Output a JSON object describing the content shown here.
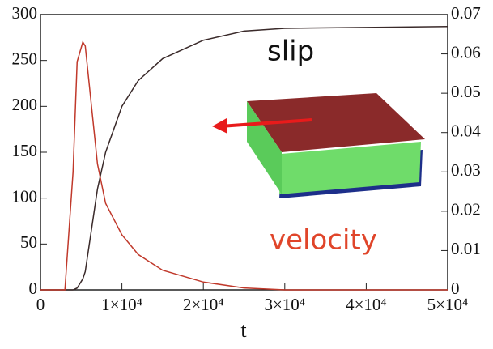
{
  "chart_data": {
    "type": "line",
    "x_label": "t",
    "annotations": [
      "slip",
      "velocity"
    ],
    "x": [
      0,
      3000,
      4000,
      4500,
      5200,
      5500,
      6000,
      6500,
      7000,
      8000,
      10000,
      12000,
      15000,
      20000,
      25000,
      30000,
      40000,
      50000
    ],
    "series": [
      {
        "name": "slip",
        "color": "#3a2a2a",
        "values": [
          0,
          0,
          0,
          2,
          12,
          20,
          50,
          80,
          110,
          150,
          200,
          228,
          252,
          272,
          282,
          285,
          286,
          287
        ]
      },
      {
        "name": "velocity",
        "color": "#c0392b",
        "axis": "y2",
        "values": [
          0,
          0,
          0.03,
          0.058,
          0.063,
          0.062,
          0.052,
          0.042,
          0.032,
          0.022,
          0.014,
          0.009,
          0.005,
          0.002,
          0.0005,
          0,
          0,
          0
        ]
      }
    ],
    "xlim": [
      0,
      50000
    ],
    "xticks": [
      0,
      {
        "value": 10000,
        "label": "1×10⁴"
      },
      {
        "value": 20000,
        "label": "2×10⁴"
      },
      {
        "value": 30000,
        "label": "3×10⁴"
      },
      {
        "value": 40000,
        "label": "4×10⁴"
      },
      {
        "value": 50000,
        "label": "5×10⁴"
      }
    ],
    "ylim": [
      0,
      300
    ],
    "yticks": [
      0,
      50,
      100,
      150,
      200,
      250,
      300
    ],
    "y2lim": [
      0,
      0.07
    ],
    "y2ticks": [
      0,
      0.01,
      0.02,
      0.03,
      0.04,
      0.05,
      0.06,
      0.07
    ]
  }
}
